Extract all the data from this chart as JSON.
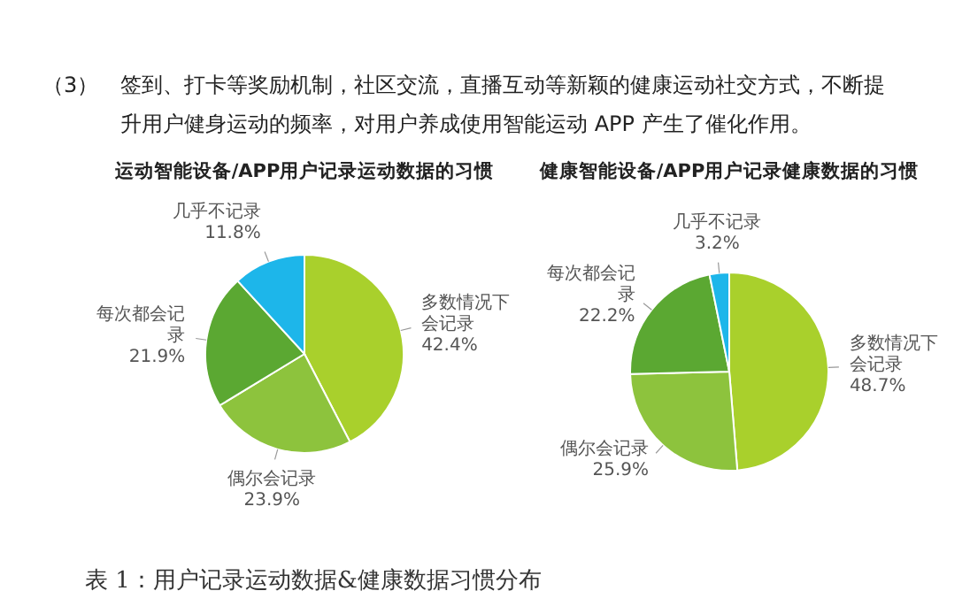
{
  "chart_data": [
    {
      "type": "pie",
      "title": "运动智能设备/APP用户记录运动数据的习惯",
      "categories": [
        "多数情况下会记录",
        "偶尔会记录",
        "每次都会记录",
        "几乎不记录"
      ],
      "values": [
        42.4,
        23.9,
        21.9,
        11.8
      ],
      "value_labels": [
        "42.4%",
        "23.9%",
        "21.9%",
        "11.8%"
      ],
      "colors": [
        "#a9d02c",
        "#8dc33d",
        "#5ba832",
        "#1db6ea"
      ],
      "annotations": [
        "（3）",
        "签到、打卡等奖励机制，社区交流，直播互动等新颖的健康运动社交方式，不断提升用户健身运动的频率，对用户养成使用智能运动 APP 产生了催化作用。"
      ]
    },
    {
      "type": "pie",
      "title": "健康智能设备/APP用户记录健康数据的习惯",
      "categories": [
        "多数情况下会记录",
        "偶尔会记录",
        "每次都会记录",
        "几乎不记录"
      ],
      "values": [
        48.7,
        25.9,
        22.2,
        3.2
      ],
      "value_labels": [
        "48.7%",
        "25.9%",
        "22.2%",
        "3.2%"
      ],
      "colors": [
        "#a9d02c",
        "#8dc33d",
        "#5ba832",
        "#1db6ea"
      ],
      "annotations": [
        "表 1：用户记录运动数据&健康数据习惯分布"
      ]
    }
  ]
}
